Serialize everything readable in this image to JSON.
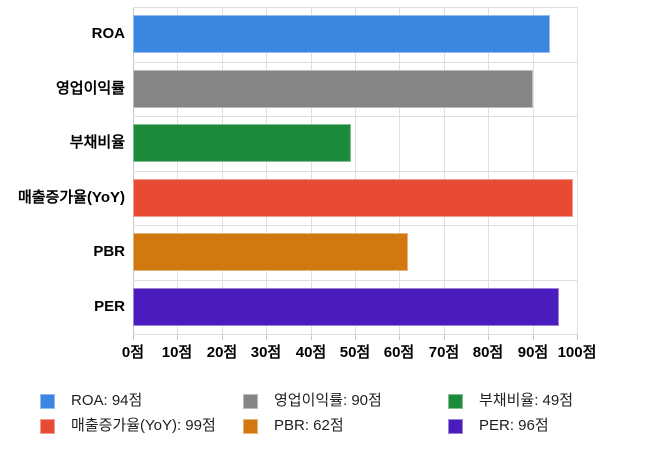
{
  "chart_data": {
    "type": "bar",
    "orientation": "horizontal",
    "categories": [
      "ROA",
      "영업이익률",
      "부채비율",
      "매출증가율(YoY)",
      "PBR",
      "PER"
    ],
    "values": [
      94,
      90,
      49,
      99,
      62,
      96
    ],
    "unit": "점",
    "colors": [
      "#3c85e0",
      "#858585",
      "#1e8b3b",
      "#e74b33",
      "#d1790e",
      "#4a1cbe"
    ],
    "xlim": [
      0,
      100
    ],
    "x_ticks": [
      0,
      10,
      20,
      30,
      40,
      50,
      60,
      70,
      80,
      90,
      100
    ],
    "x_tick_labels": [
      "0점",
      "10점",
      "20점",
      "30점",
      "40점",
      "50점",
      "60점",
      "70점",
      "80점",
      "90점",
      "100점"
    ],
    "grid": true,
    "legend_position": "bottom",
    "legend_labels": [
      "ROA: 94점",
      "영업이익률: 90점",
      "부채비율: 49점",
      "매출증가율(YoY): 99점",
      "PBR: 62점",
      "PER: 96점"
    ]
  },
  "style_colors": {
    "background": "#ffffff",
    "grid": "#e0e0e0",
    "axis": "#c6c6c6",
    "label_text": "#000000",
    "legend_text": "#1f1f1f"
  }
}
